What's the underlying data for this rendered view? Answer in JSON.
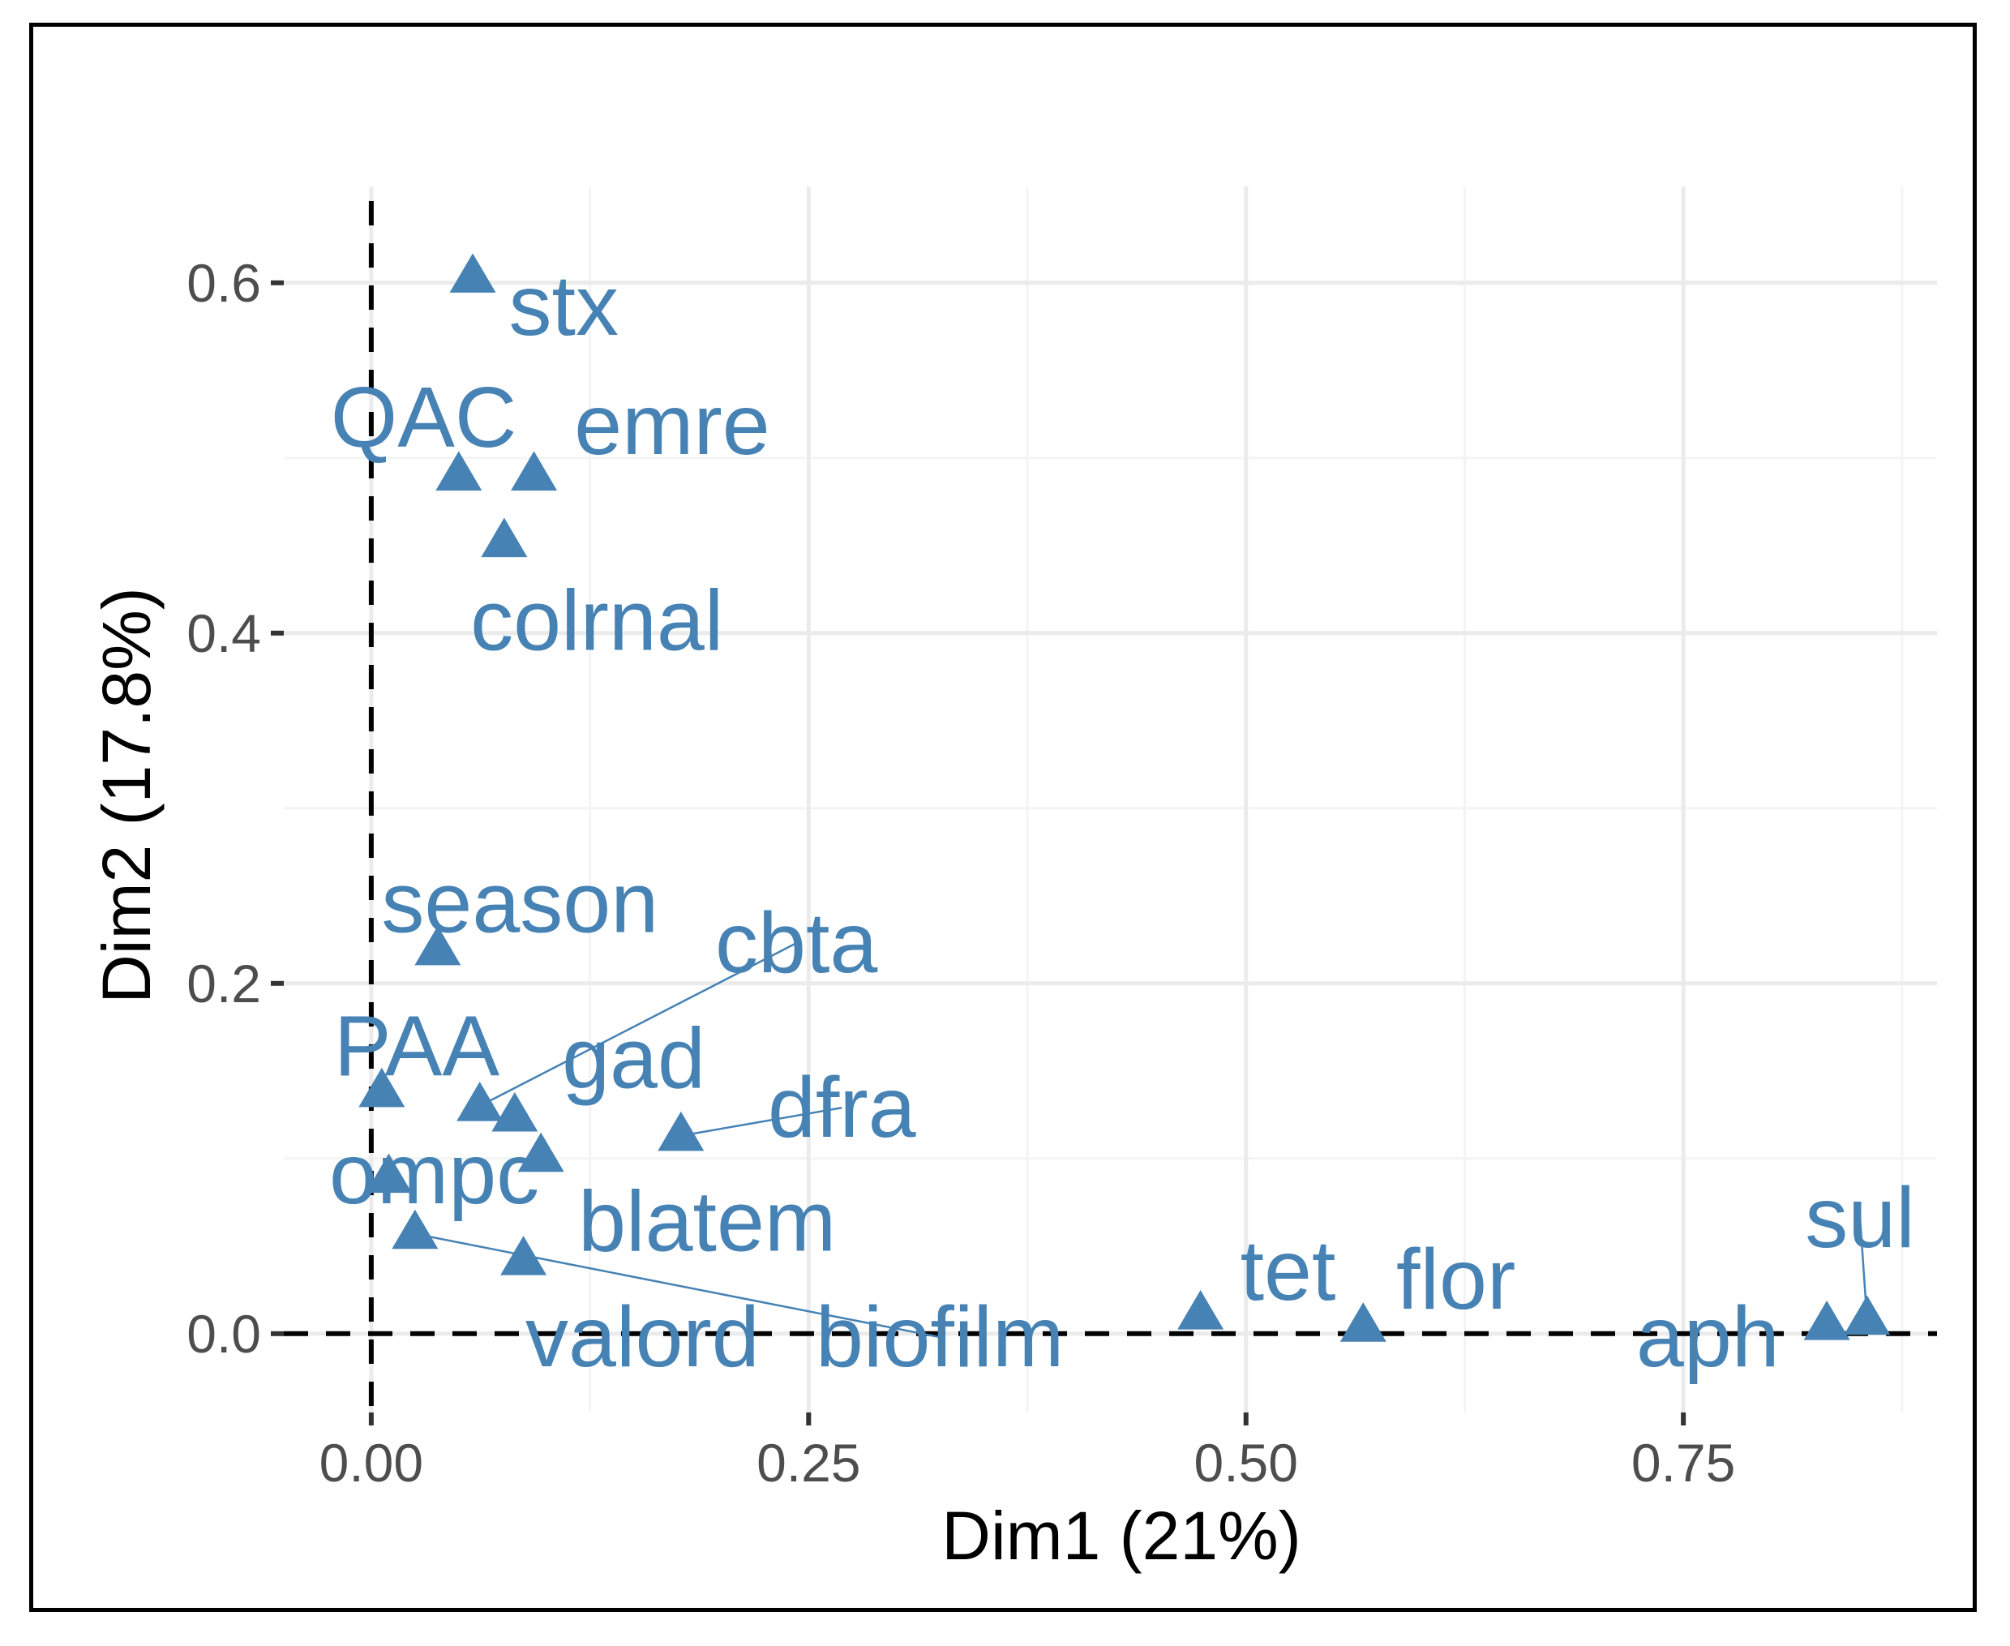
{
  "chart_data": {
    "type": "scatter",
    "title": "",
    "xlabel": "Dim1 (21%)",
    "ylabel": "Dim2 (17.8%)",
    "xlim": [
      -0.05,
      0.895
    ],
    "ylim": [
      -0.045,
      0.655
    ],
    "xticks": [
      0.0,
      0.25,
      0.5,
      0.75
    ],
    "xtick_labels": [
      "0.00",
      "0.25",
      "0.50",
      "0.75"
    ],
    "yticks": [
      0.0,
      0.2,
      0.4,
      0.6
    ],
    "ytick_labels": [
      "0.0",
      "0.2",
      "0.4",
      "0.6"
    ],
    "grid": true,
    "reference_lines": {
      "x": 0,
      "y": 0
    },
    "marker": "triangle",
    "color": "#4682b4",
    "points": [
      {
        "label": "stx",
        "x": 0.058,
        "y": 0.603,
        "lx": 0.11,
        "ly": 0.587
      },
      {
        "label": "QAC",
        "x": 0.05,
        "y": 0.49,
        "lx": 0.03,
        "ly": 0.523
      },
      {
        "label": "emre",
        "x": 0.093,
        "y": 0.49,
        "lx": 0.172,
        "ly": 0.519
      },
      {
        "label": "colrnal",
        "x": 0.076,
        "y": 0.452,
        "lx": 0.129,
        "ly": 0.407
      },
      {
        "label": "season",
        "x": 0.038,
        "y": 0.219,
        "lx": 0.085,
        "ly": 0.246
      },
      {
        "label": "cbta",
        "x": 0.062,
        "y": 0.13,
        "lx": 0.243,
        "ly": 0.223,
        "leader": true
      },
      {
        "label": "PAA",
        "x": 0.006,
        "y": 0.138,
        "lx": 0.026,
        "ly": 0.164
      },
      {
        "label": "gad",
        "x": 0.082,
        "y": 0.124,
        "lx": 0.15,
        "ly": 0.157
      },
      {
        "label": "dfra",
        "x": 0.177,
        "y": 0.113,
        "lx": 0.269,
        "ly": 0.129,
        "leader": true
      },
      {
        "label": "ompc",
        "x": 0.01,
        "y": 0.089,
        "lx": 0.036,
        "ly": 0.091
      },
      {
        "label": "blatem",
        "x": 0.097,
        "y": 0.101,
        "lx": 0.192,
        "ly": 0.064
      },
      {
        "label": "valord",
        "x": 0.087,
        "y": 0.042,
        "lx": 0.155,
        "ly": -0.002
      },
      {
        "label": "biofilm",
        "x": 0.025,
        "y": 0.057,
        "lx": 0.325,
        "ly": -0.002,
        "leader": true
      },
      {
        "label": "tet",
        "x": 0.474,
        "y": 0.011,
        "lx": 0.524,
        "ly": 0.036
      },
      {
        "label": "flor",
        "x": 0.567,
        "y": 0.004,
        "lx": 0.62,
        "ly": 0.031
      },
      {
        "label": "aph",
        "x": 0.832,
        "y": 0.005,
        "lx": 0.764,
        "ly": -0.002
      },
      {
        "label": "sul",
        "x": 0.855,
        "y": 0.008,
        "lx": 0.851,
        "ly": 0.066,
        "leader": true
      }
    ]
  }
}
